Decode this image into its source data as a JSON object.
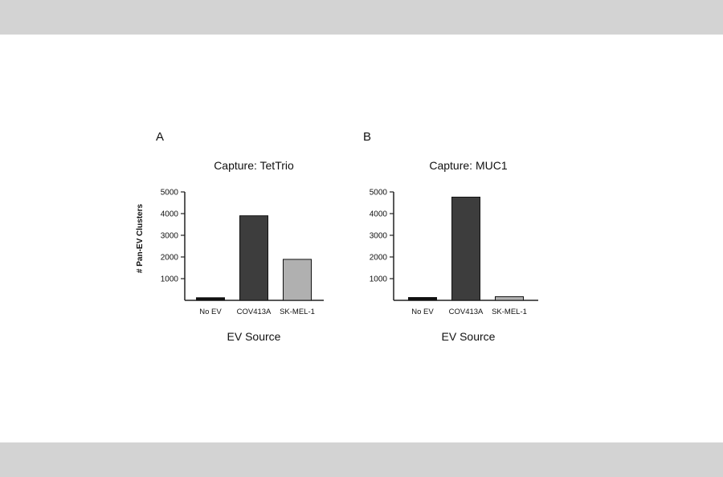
{
  "figure": {
    "y_axis_label": "# Pan-EV Clusters",
    "panels": [
      {
        "letter": "A",
        "title": "Capture: TetTrio",
        "xlabel": "EV Source"
      },
      {
        "letter": "B",
        "title": "Capture: MUC1",
        "xlabel": "EV Source"
      }
    ]
  },
  "colors": {
    "no_ev": "#111111",
    "cov413a": "#3d3d3d",
    "sk_mel_1": "#b0b0b0",
    "axis": "#222222"
  },
  "chart_data": [
    {
      "type": "bar",
      "title": "Capture: TetTrio",
      "xlabel": "EV Source",
      "ylabel": "# Pan-EV Clusters",
      "categories": [
        "No EV",
        "COV413A",
        "SK-MEL-1"
      ],
      "values": [
        120,
        3900,
        1890
      ],
      "ylim": [
        0,
        5000
      ],
      "yticks": [
        1000,
        2000,
        3000,
        4000,
        5000
      ],
      "grid": false
    },
    {
      "type": "bar",
      "title": "Capture: MUC1",
      "xlabel": "EV Source",
      "ylabel": "",
      "categories": [
        "No EV",
        "COV413A",
        "SK-MEL-1"
      ],
      "values": [
        130,
        4760,
        170
      ],
      "ylim": [
        0,
        5000
      ],
      "yticks": [
        1000,
        2000,
        3000,
        4000,
        5000
      ],
      "grid": false
    }
  ]
}
